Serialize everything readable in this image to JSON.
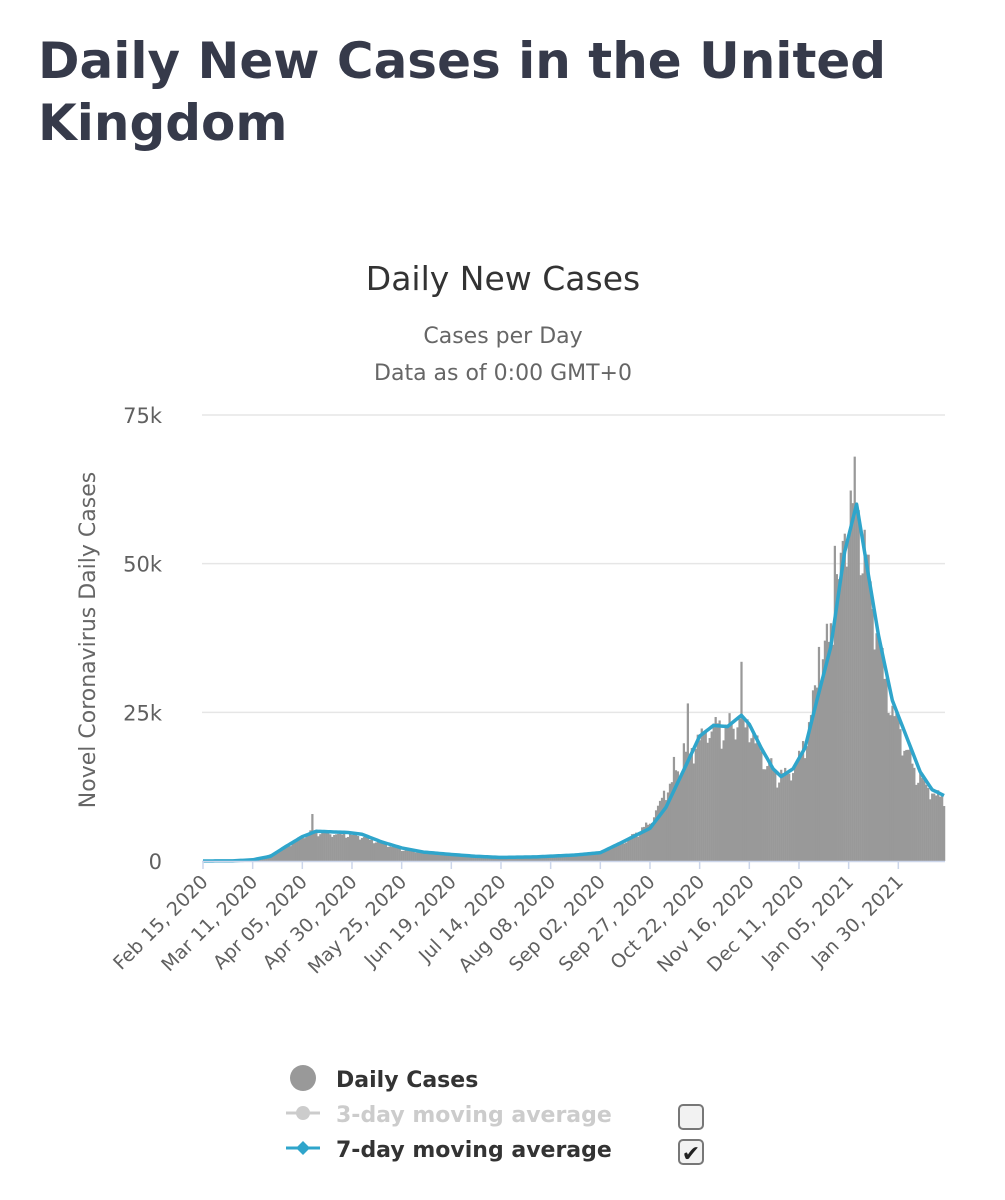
{
  "page": {
    "title": "Daily New Cases in the United Kingdom"
  },
  "legend": {
    "items": [
      {
        "label": "Daily Cases",
        "color": "#999999",
        "symbol": "circle",
        "checkbox": null
      },
      {
        "label": "3-day moving average",
        "color": "#cccccc",
        "symbol": "line-circle",
        "checkbox": false
      },
      {
        "label": "7-day moving average",
        "color": "#2fa5cb",
        "symbol": "line-diamond",
        "checkbox": true
      }
    ],
    "check_glyph": "✔"
  },
  "chart_data": {
    "type": "bar",
    "title": "Daily New Cases",
    "subtitle_lines": [
      "Cases per Day",
      "Data as of 0:00 GMT+0"
    ],
    "xlabel": "",
    "ylabel": "Novel Coronavirus Daily Cases",
    "ylim": [
      0,
      75000
    ],
    "yticks": [
      {
        "value": 0,
        "label": "0"
      },
      {
        "value": 25000,
        "label": "25k"
      },
      {
        "value": 50000,
        "label": "50k"
      },
      {
        "value": 75000,
        "label": "75k"
      }
    ],
    "x_range": [
      "2020-02-15",
      "2021-02-22"
    ],
    "xticks": [
      {
        "date": "2020-02-15",
        "label": "Feb 15, 2020"
      },
      {
        "date": "2020-03-11",
        "label": "Mar 11, 2020"
      },
      {
        "date": "2020-04-05",
        "label": "Apr 05, 2020"
      },
      {
        "date": "2020-04-30",
        "label": "Apr 30, 2020"
      },
      {
        "date": "2020-05-25",
        "label": "May 25, 2020"
      },
      {
        "date": "2020-06-19",
        "label": "Jun 19, 2020"
      },
      {
        "date": "2020-07-14",
        "label": "Jul 14, 2020"
      },
      {
        "date": "2020-08-08",
        "label": "Aug 08, 2020"
      },
      {
        "date": "2020-09-02",
        "label": "Sep 02, 2020"
      },
      {
        "date": "2020-09-27",
        "label": "Sep 27, 2020"
      },
      {
        "date": "2020-10-22",
        "label": "Oct 22, 2020"
      },
      {
        "date": "2020-11-16",
        "label": "Nov 16, 2020"
      },
      {
        "date": "2020-12-11",
        "label": "Dec 11, 2020"
      },
      {
        "date": "2021-01-05",
        "label": "Jan 05, 2021"
      },
      {
        "date": "2021-01-30",
        "label": "Jan 30, 2021"
      }
    ],
    "grid": true,
    "legend_position": "bottom",
    "bar_color": "#999999",
    "line_color": "#2fa5cb",
    "series": [
      {
        "name": "Daily Cases",
        "kind": "bar",
        "keypoints": [
          [
            "2020-02-15",
            0
          ],
          [
            "2020-03-05",
            50
          ],
          [
            "2020-03-15",
            300
          ],
          [
            "2020-03-25",
            1800
          ],
          [
            "2020-04-05",
            4200
          ],
          [
            "2020-04-10",
            5200
          ],
          [
            "2020-04-20",
            4600
          ],
          [
            "2020-04-30",
            4500
          ],
          [
            "2020-05-05",
            4200
          ],
          [
            "2020-05-15",
            3000
          ],
          [
            "2020-05-25",
            2000
          ],
          [
            "2020-06-05",
            1500
          ],
          [
            "2020-06-19",
            1200
          ],
          [
            "2020-07-01",
            800
          ],
          [
            "2020-07-14",
            600
          ],
          [
            "2020-08-01",
            700
          ],
          [
            "2020-08-15",
            900
          ],
          [
            "2020-09-02",
            1500
          ],
          [
            "2020-09-15",
            3500
          ],
          [
            "2020-09-27",
            6500
          ],
          [
            "2020-10-05",
            12000
          ],
          [
            "2020-10-12",
            16000
          ],
          [
            "2020-10-22",
            21000
          ],
          [
            "2020-10-29",
            23000
          ],
          [
            "2020-11-05",
            22500
          ],
          [
            "2020-11-10",
            24000
          ],
          [
            "2020-11-16",
            23000
          ],
          [
            "2020-11-24",
            17000
          ],
          [
            "2020-12-01",
            14500
          ],
          [
            "2020-12-08",
            15500
          ],
          [
            "2020-12-14",
            20000
          ],
          [
            "2020-12-20",
            30000
          ],
          [
            "2020-12-27",
            40000
          ],
          [
            "2021-01-03",
            55000
          ],
          [
            "2021-01-08",
            62000
          ],
          [
            "2021-01-12",
            55000
          ],
          [
            "2021-01-18",
            42000
          ],
          [
            "2021-01-25",
            28000
          ],
          [
            "2021-02-01",
            21000
          ],
          [
            "2021-02-08",
            15000
          ],
          [
            "2021-02-15",
            12000
          ],
          [
            "2021-02-22",
            10500
          ]
        ],
        "spikes": [
          [
            "2020-04-10",
            7900
          ],
          [
            "2020-10-09",
            17500
          ],
          [
            "2020-10-14",
            19800
          ],
          [
            "2020-10-16",
            26500
          ],
          [
            "2020-11-12",
            33500
          ],
          [
            "2020-12-21",
            36000
          ],
          [
            "2020-12-29",
            53000
          ],
          [
            "2021-01-06",
            62300
          ],
          [
            "2021-01-08",
            68000
          ],
          [
            "2021-01-10",
            59000
          ],
          [
            "2021-01-13",
            55700
          ]
        ]
      },
      {
        "name": "7-day moving average",
        "kind": "line",
        "points": [
          [
            "2020-02-15",
            0
          ],
          [
            "2020-03-01",
            30
          ],
          [
            "2020-03-11",
            200
          ],
          [
            "2020-03-20",
            800
          ],
          [
            "2020-03-28",
            2500
          ],
          [
            "2020-04-05",
            4100
          ],
          [
            "2020-04-12",
            5000
          ],
          [
            "2020-04-20",
            4900
          ],
          [
            "2020-04-28",
            4800
          ],
          [
            "2020-05-05",
            4500
          ],
          [
            "2020-05-15",
            3200
          ],
          [
            "2020-05-25",
            2200
          ],
          [
            "2020-06-05",
            1500
          ],
          [
            "2020-06-19",
            1100
          ],
          [
            "2020-07-01",
            800
          ],
          [
            "2020-07-14",
            600
          ],
          [
            "2020-08-01",
            700
          ],
          [
            "2020-08-20",
            1000
          ],
          [
            "2020-09-02",
            1400
          ],
          [
            "2020-09-12",
            3000
          ],
          [
            "2020-09-27",
            5500
          ],
          [
            "2020-10-05",
            9000
          ],
          [
            "2020-10-15",
            16000
          ],
          [
            "2020-10-22",
            21000
          ],
          [
            "2020-10-29",
            22800
          ],
          [
            "2020-11-05",
            22600
          ],
          [
            "2020-11-12",
            24500
          ],
          [
            "2020-11-16",
            23000
          ],
          [
            "2020-11-22",
            19000
          ],
          [
            "2020-11-28",
            15500
          ],
          [
            "2020-12-02",
            14200
          ],
          [
            "2020-12-08",
            15500
          ],
          [
            "2020-12-14",
            19000
          ],
          [
            "2020-12-20",
            27000
          ],
          [
            "2020-12-27",
            36000
          ],
          [
            "2021-01-03",
            52000
          ],
          [
            "2021-01-09",
            60000
          ],
          [
            "2021-01-14",
            50000
          ],
          [
            "2021-01-20",
            38000
          ],
          [
            "2021-01-27",
            27000
          ],
          [
            "2021-02-03",
            21000
          ],
          [
            "2021-02-10",
            15000
          ],
          [
            "2021-02-16",
            12000
          ],
          [
            "2021-02-22",
            11000
          ]
        ]
      }
    ]
  }
}
